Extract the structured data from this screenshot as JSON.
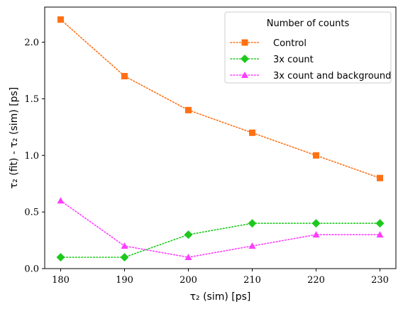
{
  "chart_data": {
    "type": "line",
    "x": [
      180,
      190,
      200,
      210,
      220,
      230
    ],
    "xlabel": "τ₂ (sim) [ps]",
    "ylabel": "τ₂ (fit) - τ₂ (sim) [ps]",
    "xlim": [
      177.5,
      232.5
    ],
    "ylim": [
      0.0,
      2.31
    ],
    "xticks": [
      "180",
      "190",
      "200",
      "210",
      "220",
      "230"
    ],
    "yticks": [
      "0.0",
      "0.5",
      "1.0",
      "1.5",
      "2.0"
    ],
    "grid": false,
    "legend": {
      "title": "Number of counts",
      "position": "top-right"
    },
    "series": [
      {
        "name": "Control",
        "values": [
          2.2,
          1.7,
          1.4,
          1.2,
          1.0,
          0.8
        ],
        "color": "#ff7014",
        "marker": "square",
        "linestyle": "dotted"
      },
      {
        "name": "3x count",
        "values": [
          0.1,
          0.1,
          0.3,
          0.4,
          0.4,
          0.4
        ],
        "color": "#1ec81e",
        "marker": "diamond",
        "linestyle": "dotted"
      },
      {
        "name": "3x count and background",
        "values": [
          0.6,
          0.2,
          0.1,
          0.2,
          0.3,
          0.3
        ],
        "color": "#ff3cff",
        "marker": "triangle",
        "linestyle": "dotted"
      }
    ]
  }
}
